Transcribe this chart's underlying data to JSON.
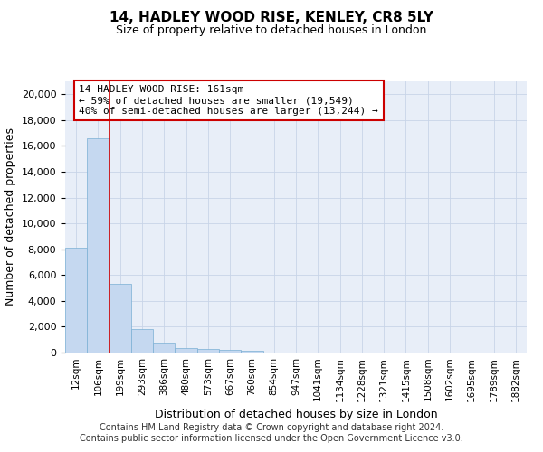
{
  "title1": "14, HADLEY WOOD RISE, KENLEY, CR8 5LY",
  "title2": "Size of property relative to detached houses in London",
  "xlabel": "Distribution of detached houses by size in London",
  "ylabel": "Number of detached properties",
  "categories": [
    "12sqm",
    "106sqm",
    "199sqm",
    "293sqm",
    "386sqm",
    "480sqm",
    "573sqm",
    "667sqm",
    "760sqm",
    "854sqm",
    "947sqm",
    "1041sqm",
    "1134sqm",
    "1228sqm",
    "1321sqm",
    "1415sqm",
    "1508sqm",
    "1602sqm",
    "1695sqm",
    "1789sqm",
    "1882sqm"
  ],
  "bar_values": [
    8100,
    16600,
    5300,
    1850,
    750,
    350,
    280,
    200,
    150,
    0,
    0,
    0,
    0,
    0,
    0,
    0,
    0,
    0,
    0,
    0,
    0
  ],
  "bar_color": "#c5d8f0",
  "bar_edge_color": "#7aafd4",
  "grid_color": "#c8d4e8",
  "background_color": "#e8eef8",
  "vline_x": 1.5,
  "vline_color": "#cc0000",
  "annotation_text": "14 HADLEY WOOD RISE: 161sqm\n← 59% of detached houses are smaller (19,549)\n40% of semi-detached houses are larger (13,244) →",
  "annotation_box_color": "white",
  "annotation_box_edge": "#cc0000",
  "ylim": [
    0,
    21000
  ],
  "yticks": [
    0,
    2000,
    4000,
    6000,
    8000,
    10000,
    12000,
    14000,
    16000,
    18000,
    20000
  ],
  "footer1": "Contains HM Land Registry data © Crown copyright and database right 2024.",
  "footer2": "Contains public sector information licensed under the Open Government Licence v3.0."
}
